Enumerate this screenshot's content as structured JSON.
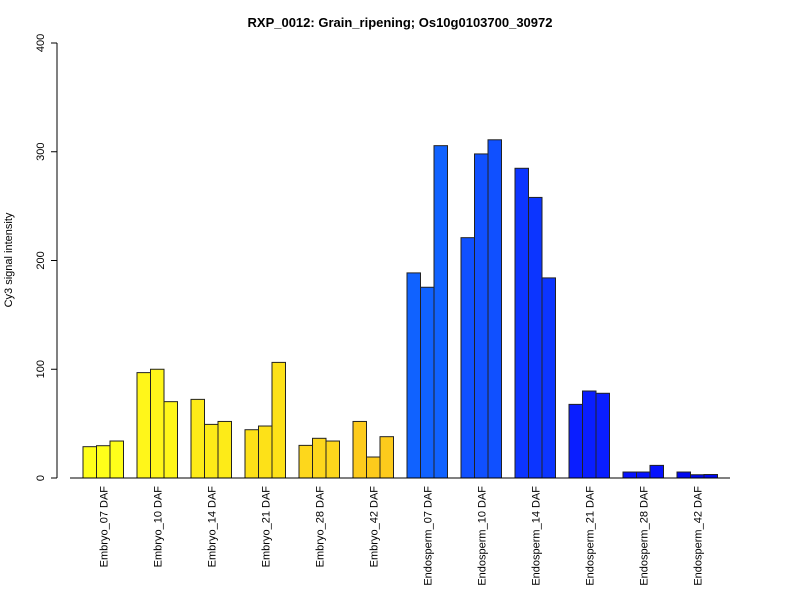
{
  "chart_data": {
    "type": "bar",
    "title": "RXP_0012: Grain_ripening; Os10g0103700_30972",
    "xlabel": "",
    "ylabel": "Cy3 signal intensity",
    "ylim": [
      0,
      400
    ],
    "yticks": [
      0,
      100,
      200,
      300,
      400
    ],
    "grid": false,
    "categories": [
      "Embryo_07 DAF",
      "Embryo_10 DAF",
      "Embryo_14 DAF",
      "Embryo_21 DAF",
      "Embryo_28 DAF",
      "Embryo_42 DAF",
      "Endosperm_07 DAF",
      "Endosperm_10 DAF",
      "Endosperm_14 DAF",
      "Endosperm_21 DAF",
      "Endosperm_28 DAF",
      "Endosperm_42 DAF"
    ],
    "replicates": [
      [
        28.8,
        29.7,
        34.0
      ],
      [
        96.9,
        100.0,
        70.2
      ],
      [
        72.3,
        49.3,
        52.0
      ],
      [
        44.4,
        47.8,
        106.3
      ],
      [
        30.0,
        36.5,
        34.0
      ],
      [
        52.0,
        19.3,
        38.0
      ],
      [
        188.6,
        175.4,
        305.6
      ],
      [
        221.0,
        298.0,
        311.0
      ],
      [
        284.8,
        258.0,
        184.0
      ],
      [
        67.7,
        80.0,
        77.9
      ],
      [
        5.5,
        5.5,
        11.6
      ],
      [
        5.5,
        3.0,
        3.2
      ]
    ],
    "colors": [
      "#FFFF1A",
      "#FFF61A",
      "#FDEB18",
      "#FDE118",
      "#FDD71C",
      "#FDCB1C",
      "#1062FF",
      "#1050FF",
      "#0C35FF",
      "#0A1EFF",
      "#0612FF",
      "#0008F0"
    ]
  }
}
